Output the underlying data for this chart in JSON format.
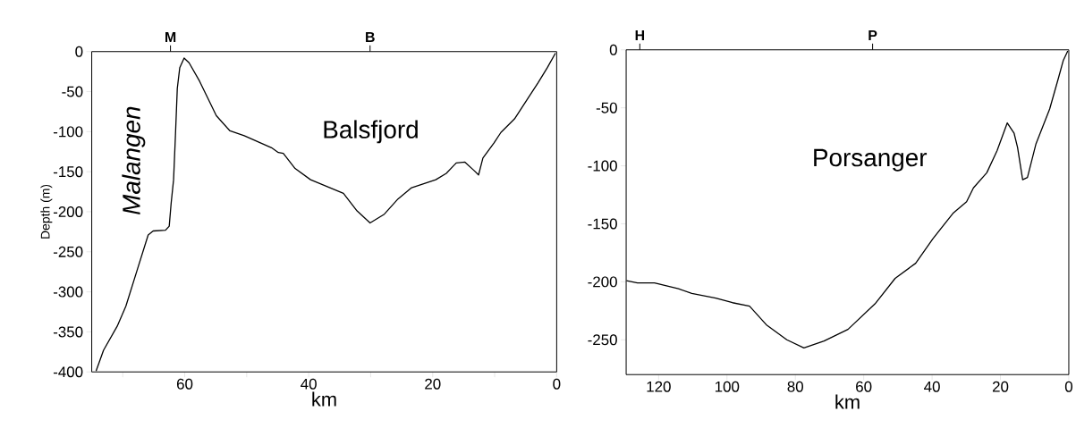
{
  "chart_data": [
    {
      "type": "line",
      "ylabel": "Depth (m)",
      "xlabel": "km",
      "annotations": [
        "Malangen",
        "Balsfjord"
      ],
      "ref_lines": [
        {
          "axis": "x",
          "value": 62.3,
          "label": "M"
        },
        {
          "axis": "x",
          "value": 30.1,
          "label": "B"
        }
      ],
      "xlim": [
        75,
        0
      ],
      "ylim": [
        -400,
        0
      ],
      "xticks": [
        {
          "value": 70,
          "label": null
        },
        60,
        {
          "value": 50,
          "label": null
        },
        40,
        {
          "value": 30,
          "label": null
        },
        20,
        {
          "value": 10,
          "label": null
        },
        0
      ],
      "yticks": [
        -400,
        -350,
        -300,
        -250,
        -200,
        -150,
        -100,
        -50,
        0
      ],
      "series": [
        {
          "color": "#000000",
          "x": [
            74.3,
            73.1,
            70.9,
            69.5,
            67.6,
            65.9,
            65.1,
            63.1,
            62.5,
            62.2,
            61.8,
            61.5,
            61.2,
            60.8,
            60.1,
            59.3,
            57.6,
            54.9,
            52.7,
            50.4,
            46.0,
            44.9,
            44.1,
            42.2,
            39.7,
            34.4,
            32.2,
            30.1,
            27.8,
            25.6,
            23.4,
            19.5,
            17.8,
            16.2,
            14.8,
            13.4,
            12.6,
            11.9,
            10.1,
            9.0,
            6.8,
            4.6,
            3.0,
            1.5,
            0.2
          ],
          "values": [
            -399,
            -373,
            -343,
            -318,
            -271,
            -229,
            -224,
            -223,
            -218,
            -190,
            -160,
            -105,
            -46,
            -20,
            -8,
            -14,
            -37,
            -80,
            -99,
            -105,
            -120,
            -126,
            -127,
            -146,
            -160,
            -177,
            -199,
            -214,
            -203,
            -184,
            -170,
            -160,
            -152,
            -139,
            -138,
            -148,
            -154,
            -133,
            -114,
            -101,
            -84,
            -58,
            -39,
            -20,
            -2
          ]
        }
      ]
    },
    {
      "type": "line",
      "xlabel": "km",
      "annotations": [
        "Porsanger"
      ],
      "ref_lines": [
        {
          "axis": "x",
          "value": 125.5,
          "label": "H"
        },
        {
          "axis": "x",
          "value": 57.4,
          "label": "P"
        }
      ],
      "xlim": [
        129.5,
        0
      ],
      "ylim": [
        -280,
        0
      ],
      "xticks": [
        120,
        100,
        80,
        60,
        40,
        20,
        0
      ],
      "yticks": [
        -250,
        -200,
        -150,
        -100,
        -50,
        0
      ],
      "series": [
        {
          "color": "#000000",
          "x": [
            129.4,
            126.2,
            121.2,
            114.2,
            110.3,
            103.3,
            98.4,
            93.4,
            88.5,
            82.5,
            77.5,
            71.6,
            64.6,
            56.7,
            50.8,
            44.8,
            39.8,
            33.9,
            29.9,
            27.9,
            24.0,
            21.0,
            18.0,
            16.0,
            15.0,
            13.5,
            12.1,
            9.6,
            5.6,
            3.1,
            1.6,
            0.3
          ],
          "values": [
            -199,
            -201,
            -201,
            -206,
            -210,
            -214,
            -218,
            -221,
            -237,
            -250,
            -257,
            -251,
            -241,
            -219,
            -197,
            -184,
            -163,
            -141,
            -131,
            -119,
            -106,
            -87,
            -63,
            -72,
            -84,
            -112,
            -110,
            -81,
            -51,
            -25,
            -9,
            -1
          ]
        }
      ]
    }
  ]
}
